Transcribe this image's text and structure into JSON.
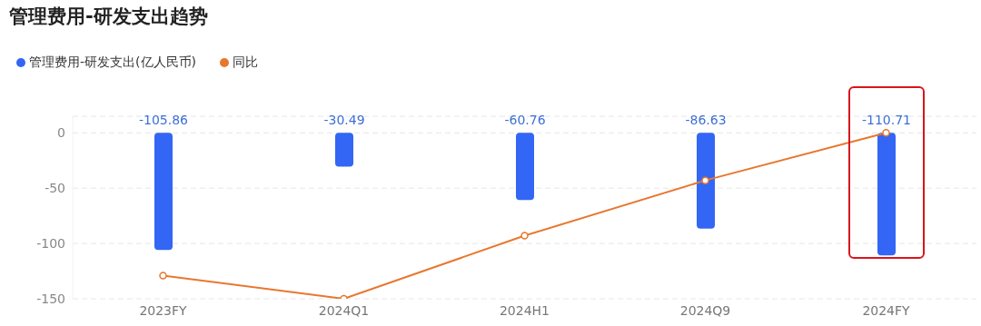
{
  "chart_data": {
    "type": "bar",
    "title": "管理费用-研发支出趋势",
    "categories": [
      "2023FY",
      "2024Q1",
      "2024H1",
      "2024Q9",
      "2024FY"
    ],
    "series": [
      {
        "name": "管理费用-研发支出(亿人民币)",
        "color": "#3366f5",
        "values": [
          -105.86,
          -30.49,
          -60.76,
          -86.63,
          -110.71
        ],
        "value_labels": [
          "-105.86",
          "-30.49",
          "-60.76",
          "-86.63",
          "-110.71"
        ]
      },
      {
        "name": "同比",
        "type": "line",
        "color": "#e8772e",
        "values": [
          -129,
          -150,
          -93,
          -43,
          0
        ]
      }
    ],
    "ylim": [
      -150,
      15
    ],
    "yticks": [
      0,
      -50,
      -100,
      -150
    ],
    "grid": "y",
    "legend": "top left",
    "marker": "circle",
    "line_style": "solid"
  }
}
